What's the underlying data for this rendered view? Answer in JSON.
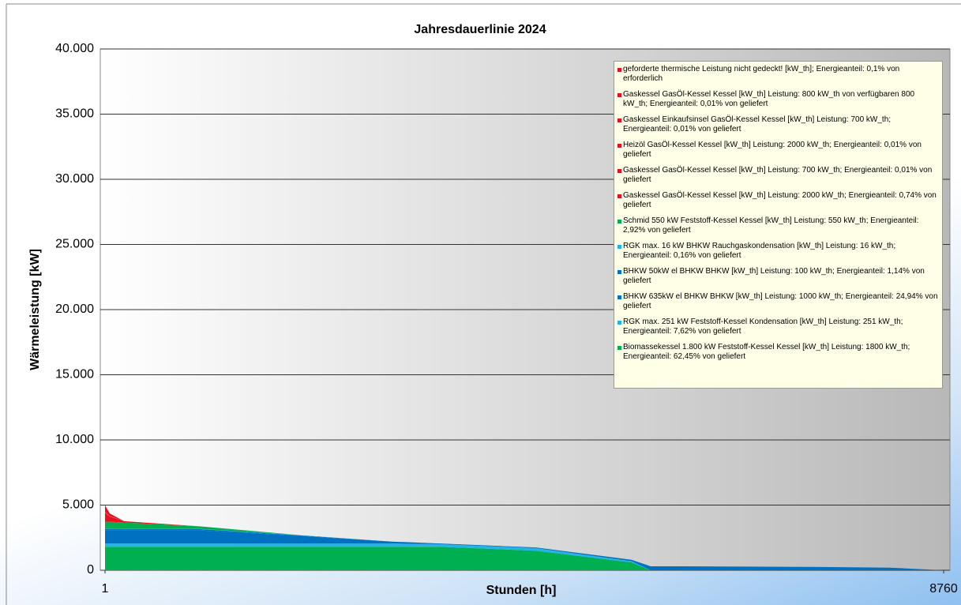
{
  "chart_data": {
    "type": "stacked_area",
    "title": "Jahresdauerlinie 2024",
    "xlabel": "Stunden [h]",
    "ylabel": "Wärmeleistung  [kW]",
    "x": [
      1,
      50,
      200,
      1000,
      2000,
      3000,
      3500,
      4500,
      5500,
      5700,
      6000,
      7500,
      8200,
      8760
    ],
    "xlim": [
      1,
      8760
    ],
    "xticks": [
      1,
      8760
    ],
    "ylim": [
      0,
      40000
    ],
    "yticks": [
      0,
      {
        "value": 5000,
        "label": "5.000"
      },
      {
        "value": 10000,
        "label": "10.000"
      },
      {
        "value": 15000,
        "label": "15.000"
      },
      {
        "value": 20000,
        "label": "20.000"
      },
      {
        "value": 25000,
        "label": "25.000"
      },
      {
        "value": 30000,
        "label": "30.000"
      },
      {
        "value": 35000,
        "label": "35.000"
      },
      {
        "value": 40000,
        "label": "40.000"
      }
    ],
    "grid": true,
    "legend": "upper right",
    "series": [
      {
        "name": "geforderte thermische Leistung nicht gedeckt! [kW_th]; Energieanteil: 0,1% von erforderlich",
        "color": "#e8101e",
        "values": [
          500,
          200,
          0,
          0,
          0,
          0,
          0,
          0,
          0,
          0,
          0,
          0,
          0,
          0
        ]
      },
      {
        "name": "Gaskessel GasÖl-Kessel Kessel [kW_th] Leistung: 800 kW_th von verfügbaren 800 kW_th; Energieanteil: 0,01% von geliefert",
        "color": "#e8101e",
        "values": [
          20,
          10,
          0,
          0,
          0,
          0,
          0,
          0,
          0,
          0,
          0,
          0,
          0,
          0
        ]
      },
      {
        "name": "Gaskessel Einkaufsinsel GasÖl-Kessel Kessel [kW_th] Leistung: 700 kW_th; Energieanteil: 0,01% von geliefert",
        "color": "#e8101e",
        "values": [
          20,
          10,
          0,
          0,
          0,
          0,
          0,
          0,
          0,
          0,
          0,
          0,
          0,
          0
        ]
      },
      {
        "name": "Heizöl GasÖl-Kessel Kessel [kW_th] Leistung: 2000 kW_th; Energieanteil: 0,01% von geliefert",
        "color": "#e8101e",
        "values": [
          20,
          10,
          0,
          0,
          0,
          0,
          0,
          0,
          0,
          0,
          0,
          0,
          0,
          0
        ]
      },
      {
        "name": "Gaskessel  GasÖl-Kessel Kessel [kW_th] Leistung: 700 kW_th; Energieanteil: 0,01% von geliefert",
        "color": "#e8101e",
        "values": [
          20,
          10,
          0,
          0,
          0,
          0,
          0,
          0,
          0,
          0,
          0,
          0,
          0,
          0
        ]
      },
      {
        "name": "Gaskessel GasÖl-Kessel Kessel [kW_th] Leistung: 2000 kW_th; Energieanteil: 0,74% von geliefert",
        "color": "#e8101e",
        "values": [
          700,
          400,
          100,
          0,
          0,
          0,
          0,
          0,
          0,
          0,
          0,
          0,
          0,
          0
        ]
      },
      {
        "name": "Schmid 550 kW Feststoff-Kessel Kessel [kW_th] Leistung: 550 kW_th; Energieanteil: 2,92% von geliefert",
        "color": "#00b050",
        "values": [
          550,
          550,
          500,
          200,
          0,
          0,
          0,
          0,
          0,
          0,
          0,
          0,
          0,
          0
        ]
      },
      {
        "name": "RGK max. 16 kW BHKW Rauchgaskondensation [kW_th] Leistung: 16 kW_th; Energieanteil: 0,16% von geliefert",
        "color": "#22b4e6",
        "values": [
          16,
          16,
          16,
          16,
          16,
          0,
          0,
          0,
          0,
          0,
          0,
          0,
          0,
          0
        ]
      },
      {
        "name": "BHKW 50kW el BHKW BHKW [kW_th] Leistung: 100 kW_th; Energieanteil: 1,14% von geliefert",
        "color": "#0070c0",
        "values": [
          100,
          100,
          100,
          100,
          50,
          0,
          0,
          0,
          0,
          0,
          0,
          0,
          0,
          0
        ]
      },
      {
        "name": "BHKW 635kW el BHKW BHKW [kW_th] Leistung: 1000 kW_th; Energieanteil: 24,94% von geliefert",
        "color": "#0070c0",
        "values": [
          1000,
          1000,
          1000,
          1000,
          600,
          150,
          50,
          50,
          100,
          300,
          300,
          250,
          200,
          0
        ]
      },
      {
        "name": "RGK max. 251 kW Feststoff-Kessel Kondensation [kW_th] Leistung: 251 kW_th; Energieanteil: 7,62% von geliefert",
        "color": "#22b4e6",
        "values": [
          250,
          250,
          250,
          250,
          250,
          250,
          200,
          200,
          100,
          0,
          0,
          0,
          0,
          0
        ]
      },
      {
        "name": "Biomassekessel 1.800 kW Feststoff-Kessel Kessel [kW_th] Leistung: 1800 kW_th; Energieanteil: 62,45% von geliefert",
        "color": "#00b050",
        "values": [
          1800,
          1800,
          1800,
          1800,
          1800,
          1800,
          1800,
          1500,
          600,
          0,
          0,
          0,
          0,
          0
        ]
      }
    ]
  }
}
